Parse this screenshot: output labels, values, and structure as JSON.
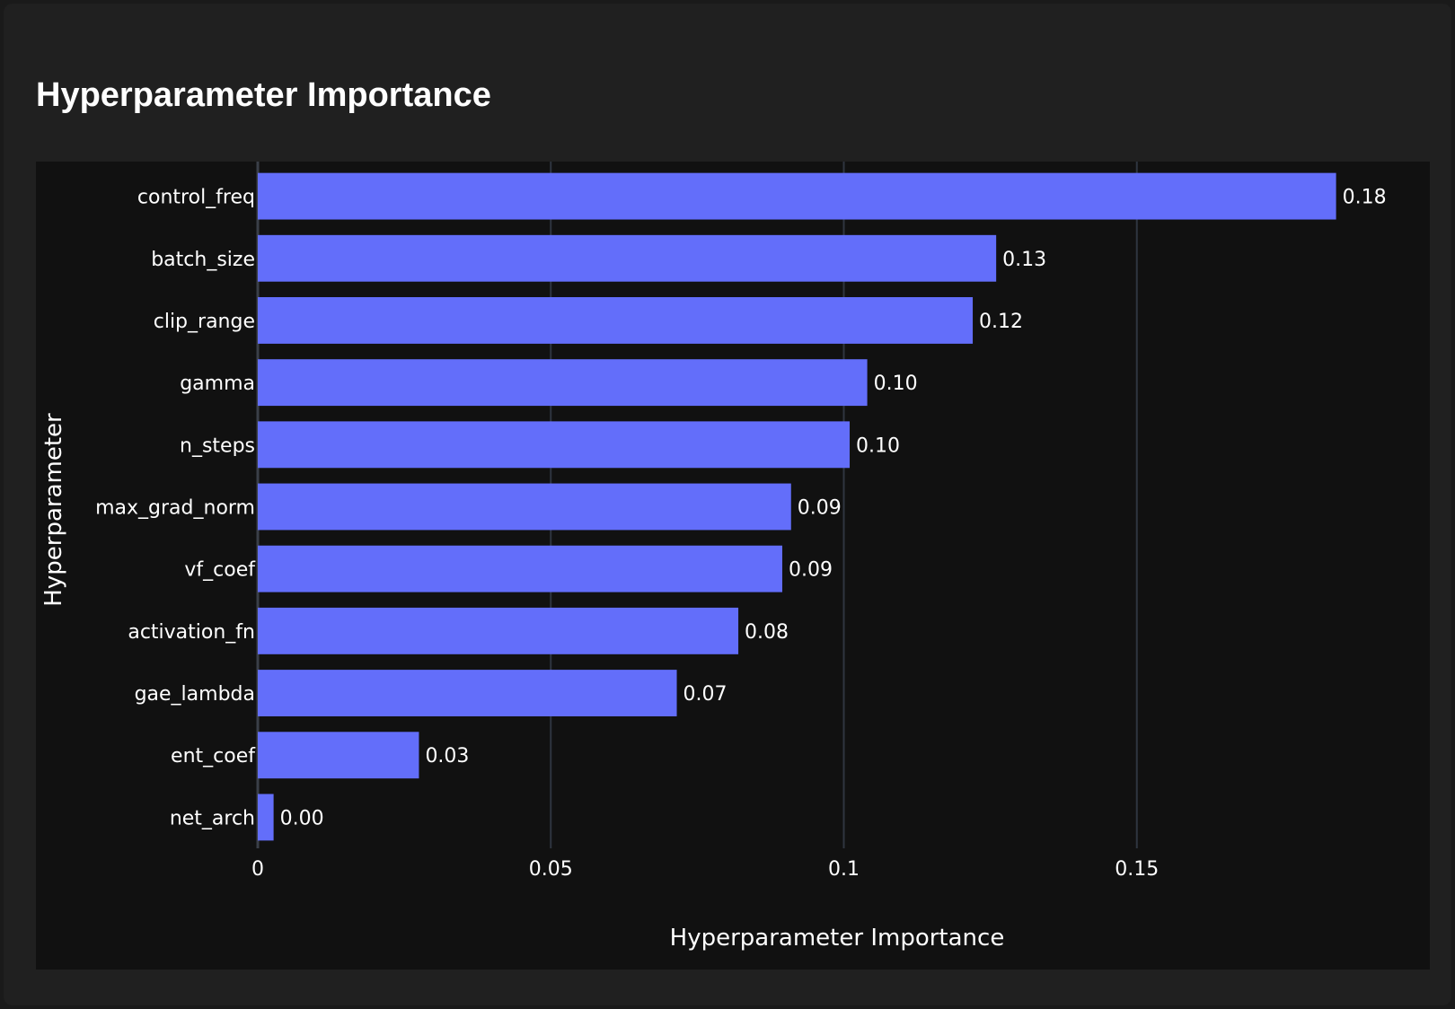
{
  "page": {
    "title": "Hyperparameter Importance"
  },
  "colors": {
    "background": "#202020",
    "plot_background": "#111111",
    "bar": "#636efa",
    "grid": "#2f3540",
    "text": "#ffffff"
  },
  "chart_data": {
    "type": "bar",
    "orientation": "horizontal",
    "xlabel": "Hyperparameter Importance",
    "ylabel": "Hyperparameter",
    "xlim": [
      0,
      0.2
    ],
    "xticks": [
      {
        "value": 0,
        "label": "0"
      },
      {
        "value": 0.05,
        "label": "0.05"
      },
      {
        "value": 0.1,
        "label": "0.1"
      },
      {
        "value": 0.15,
        "label": "0.15"
      }
    ],
    "grid": true,
    "categories": [
      "control_freq",
      "batch_size",
      "clip_range",
      "gamma",
      "n_steps",
      "max_grad_norm",
      "vf_coef",
      "activation_fn",
      "gae_lambda",
      "ent_coef",
      "net_arch"
    ],
    "values": [
      0.184,
      0.126,
      0.122,
      0.104,
      0.101,
      0.091,
      0.0895,
      0.082,
      0.0715,
      0.0275,
      0.0027
    ],
    "data_labels": [
      "0.18",
      "0.13",
      "0.12",
      "0.10",
      "0.10",
      "0.09",
      "0.09",
      "0.08",
      "0.07",
      "0.03",
      "0.00"
    ]
  }
}
